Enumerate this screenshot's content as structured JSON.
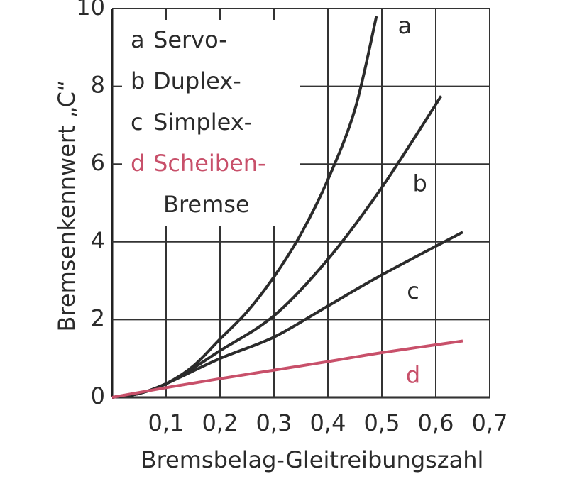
{
  "chart_data": {
    "type": "line",
    "y_label": "Bremsenkennwert „C“",
    "x_label": "Bremsbelag-Gleitreibungszahl",
    "xlim": [
      0,
      0.7
    ],
    "ylim": [
      0,
      10
    ],
    "xticks": [
      {
        "value": 0.1,
        "label": "0,1"
      },
      {
        "value": 0.2,
        "label": "0,2"
      },
      {
        "value": 0.3,
        "label": "0,3"
      },
      {
        "value": 0.4,
        "label": "0,4"
      },
      {
        "value": 0.5,
        "label": "0,5"
      },
      {
        "value": 0.6,
        "label": "0,6"
      },
      {
        "value": 0.7,
        "label": "0,7"
      }
    ],
    "yticks": [
      0,
      2,
      4,
      6,
      8,
      10
    ],
    "grid": true,
    "series": [
      {
        "name": "a",
        "legend": "Servo-",
        "color": "#2b2b2b",
        "x": [
          0,
          0.05,
          0.1,
          0.15,
          0.2,
          0.25,
          0.3,
          0.35,
          0.4,
          0.45,
          0.49
        ],
        "values": [
          0,
          0.1,
          0.35,
          0.8,
          1.5,
          2.2,
          3.1,
          4.2,
          5.6,
          7.4,
          9.8
        ]
      },
      {
        "name": "b",
        "legend": "Duplex-",
        "color": "#2b2b2b",
        "x": [
          0,
          0.05,
          0.1,
          0.15,
          0.2,
          0.3,
          0.4,
          0.5,
          0.61
        ],
        "values": [
          0,
          0.1,
          0.35,
          0.75,
          1.2,
          2.1,
          3.55,
          5.4,
          7.75
        ]
      },
      {
        "name": "c",
        "legend": "Simplex-",
        "color": "#2b2b2b",
        "x": [
          0,
          0.05,
          0.1,
          0.2,
          0.3,
          0.4,
          0.5,
          0.65
        ],
        "values": [
          0,
          0.1,
          0.35,
          1.0,
          1.55,
          2.35,
          3.15,
          4.25
        ]
      },
      {
        "name": "d",
        "legend": "Scheiben-",
        "color": "#c8506a",
        "x": [
          0,
          0.1,
          0.2,
          0.3,
          0.4,
          0.5,
          0.65
        ],
        "values": [
          0,
          0.25,
          0.48,
          0.7,
          0.92,
          1.15,
          1.45
        ]
      }
    ],
    "legend_footer": "Bremse"
  }
}
